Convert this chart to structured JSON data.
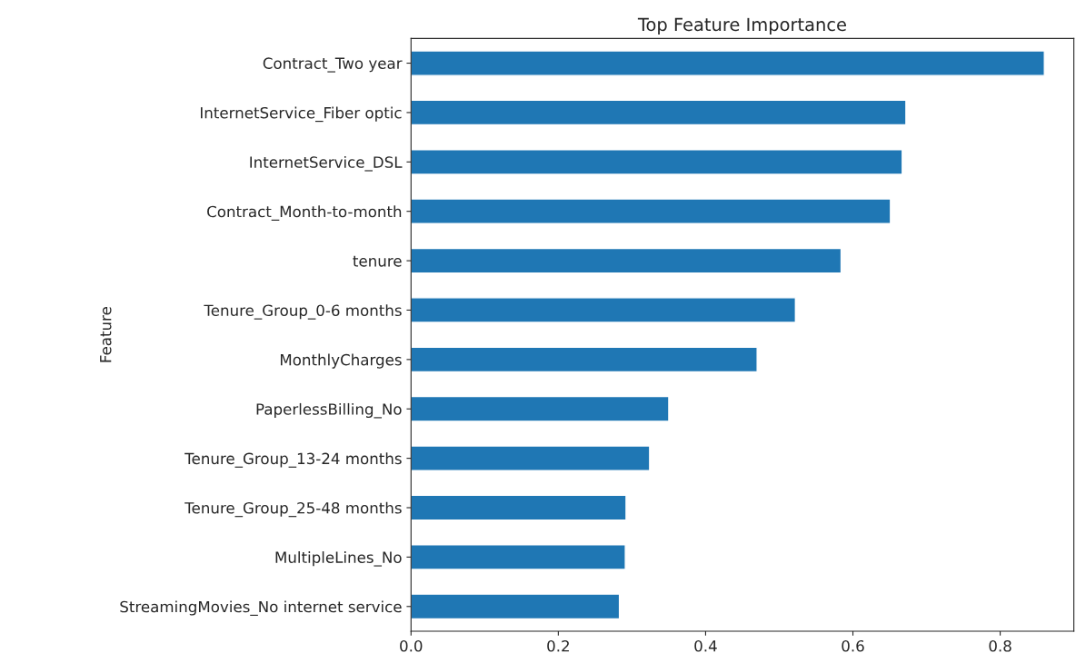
{
  "chart_data": {
    "type": "bar",
    "orientation": "horizontal",
    "title": "Top Feature Importance",
    "ylabel": "Feature",
    "categories": [
      "Contract_Two year",
      "InternetService_Fiber optic",
      "InternetService_DSL",
      "Contract_Month-to-month",
      "tenure",
      "Tenure_Group_0-6 months",
      "MonthlyCharges",
      "PaperlessBilling_No",
      "Tenure_Group_13-24 months",
      "Tenure_Group_25-48 months",
      "MultipleLines_No",
      "StreamingMovies_No internet service"
    ],
    "values": [
      0.86,
      0.672,
      0.667,
      0.651,
      0.584,
      0.522,
      0.47,
      0.35,
      0.324,
      0.292,
      0.291,
      0.283
    ],
    "color": "#1f77b4",
    "xlim": [
      0,
      0.9
    ],
    "xticks": [
      {
        "value": 0,
        "label": "0.0"
      },
      0.2,
      0.4,
      0.6,
      0.8
    ],
    "grid": false
  }
}
